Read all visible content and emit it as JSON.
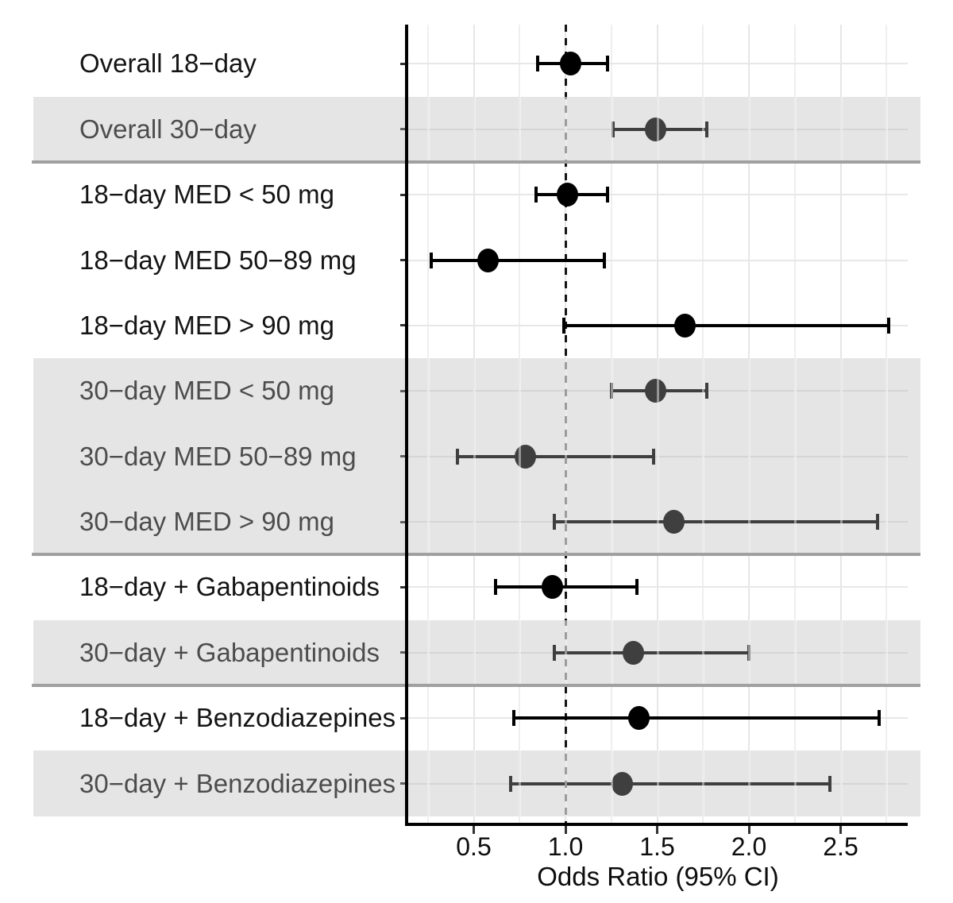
{
  "chart_data": {
    "type": "scatter",
    "variant": "forest-plot",
    "title": "",
    "xlabel": "Odds Ratio (95% CI)",
    "ylabel": "",
    "x_ticks": [
      0.5,
      1.0,
      1.5,
      2.0,
      2.5
    ],
    "x_tick_labels": [
      "0.5",
      "1.0",
      "1.5",
      "2.0",
      "2.5"
    ],
    "x_minor_ticks": [
      0.25,
      0.75,
      1.25,
      1.75,
      2.25,
      2.75
    ],
    "xlim": [
      0.14,
      2.86
    ],
    "reference_line": 1.0,
    "grid": true,
    "legend_position": "none",
    "rows": [
      {
        "label": "Overall 18−day",
        "or": 1.03,
        "ci_low": 0.85,
        "ci_high": 1.23,
        "shaded": false
      },
      {
        "label": "Overall 30−day",
        "or": 1.49,
        "ci_low": 1.26,
        "ci_high": 1.77,
        "shaded": true
      },
      {
        "label": "18−day MED < 50 mg",
        "or": 1.01,
        "ci_low": 0.84,
        "ci_high": 1.23,
        "shaded": false
      },
      {
        "label": "18−day MED 50−89 mg",
        "or": 0.58,
        "ci_low": 0.27,
        "ci_high": 1.21,
        "shaded": false
      },
      {
        "label": "18−day MED > 90 mg",
        "or": 1.65,
        "ci_low": 0.99,
        "ci_high": 2.76,
        "shaded": false
      },
      {
        "label": "30−day MED < 50 mg",
        "or": 1.49,
        "ci_low": 1.25,
        "ci_high": 1.77,
        "shaded": true
      },
      {
        "label": "30−day MED 50−89 mg",
        "or": 0.78,
        "ci_low": 0.41,
        "ci_high": 1.48,
        "shaded": true
      },
      {
        "label": "30−day MED > 90 mg",
        "or": 1.59,
        "ci_low": 0.94,
        "ci_high": 2.7,
        "shaded": true
      },
      {
        "label": "18−day + Gabapentinoids",
        "or": 0.93,
        "ci_low": 0.62,
        "ci_high": 1.39,
        "shaded": false
      },
      {
        "label": "30−day + Gabapentinoids",
        "or": 1.37,
        "ci_low": 0.94,
        "ci_high": 2.0,
        "shaded": true
      },
      {
        "label": "18−day + Benzodiazepines",
        "or": 1.4,
        "ci_low": 0.72,
        "ci_high": 2.71,
        "shaded": false
      },
      {
        "label": "30−day + Benzodiazepines",
        "or": 1.31,
        "ci_low": 0.7,
        "ci_high": 2.44,
        "shaded": true
      }
    ],
    "separators_after_rows": [
      2,
      8,
      10
    ],
    "colors": {
      "marker": "#000000",
      "error_bar": "#000000",
      "reference_line": "#141414",
      "band_overlay": "rgba(180,180,180,0.35)",
      "separator": "#a0a0a0",
      "axis_line": "#000000",
      "tick": "#333333",
      "grid_major": "#e6e6e6",
      "grid_minor": "#efefef",
      "row_grid": "#e7e7e7",
      "label_text": "#141414"
    }
  }
}
